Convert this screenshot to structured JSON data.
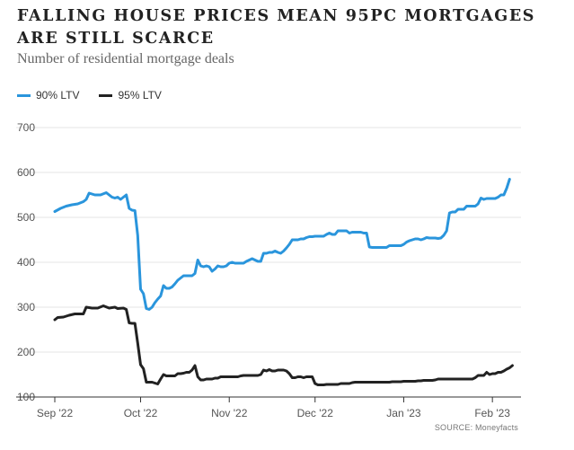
{
  "chart_data": {
    "type": "line",
    "title": "FALLING HOUSE PRICES MEAN 95PC MORTGAGES ARE STILL SCARCE",
    "subtitle": "Number of residential mortgage deals",
    "source": "SOURCE: Moneyfacts",
    "ylim": [
      100,
      700
    ],
    "yticks": [
      100,
      200,
      300,
      400,
      500,
      600,
      700
    ],
    "xlim": [
      0,
      163
    ],
    "xticks": [
      {
        "label": "Sep '22",
        "x": 0
      },
      {
        "label": "Oct '22",
        "x": 30
      },
      {
        "label": "Nov '22",
        "x": 61
      },
      {
        "label": "Dec '22",
        "x": 91
      },
      {
        "label": "Jan '23",
        "x": 122
      },
      {
        "label": "Feb '23",
        "x": 153
      }
    ],
    "grid": true,
    "legend_position": "top-left",
    "series": [
      {
        "name": "90% LTV",
        "color": "#2a95dc",
        "points": [
          [
            0,
            513
          ],
          [
            2,
            520
          ],
          [
            4,
            525
          ],
          [
            6,
            528
          ],
          [
            8,
            530
          ],
          [
            10,
            535
          ],
          [
            11,
            540
          ],
          [
            12,
            554
          ],
          [
            14,
            550
          ],
          [
            16,
            550
          ],
          [
            18,
            555
          ],
          [
            19,
            550
          ],
          [
            20,
            545
          ],
          [
            21,
            543
          ],
          [
            22,
            545
          ],
          [
            23,
            540
          ],
          [
            25,
            550
          ],
          [
            26,
            520
          ],
          [
            27,
            516
          ],
          [
            28,
            515
          ],
          [
            29,
            460
          ],
          [
            30,
            340
          ],
          [
            31,
            330
          ],
          [
            32,
            297
          ],
          [
            33,
            295
          ],
          [
            34,
            300
          ],
          [
            35,
            310
          ],
          [
            36,
            318
          ],
          [
            37,
            325
          ],
          [
            38,
            348
          ],
          [
            39,
            342
          ],
          [
            40,
            342
          ],
          [
            41,
            345
          ],
          [
            42,
            352
          ],
          [
            43,
            360
          ],
          [
            44,
            365
          ],
          [
            45,
            370
          ],
          [
            47,
            370
          ],
          [
            48,
            370
          ],
          [
            49,
            375
          ],
          [
            50,
            405
          ],
          [
            51,
            392
          ],
          [
            52,
            390
          ],
          [
            53,
            392
          ],
          [
            54,
            390
          ],
          [
            55,
            380
          ],
          [
            56,
            385
          ],
          [
            57,
            392
          ],
          [
            58,
            390
          ],
          [
            59,
            390
          ],
          [
            60,
            392
          ],
          [
            61,
            398
          ],
          [
            62,
            400
          ],
          [
            63,
            398
          ],
          [
            64,
            398
          ],
          [
            65,
            398
          ],
          [
            66,
            398
          ],
          [
            67,
            402
          ],
          [
            68,
            405
          ],
          [
            69,
            408
          ],
          [
            70,
            405
          ],
          [
            71,
            402
          ],
          [
            72,
            402
          ],
          [
            73,
            420
          ],
          [
            74,
            420
          ],
          [
            75,
            422
          ],
          [
            76,
            422
          ],
          [
            77,
            425
          ],
          [
            78,
            422
          ],
          [
            79,
            420
          ],
          [
            80,
            425
          ],
          [
            81,
            432
          ],
          [
            82,
            440
          ],
          [
            83,
            450
          ],
          [
            84,
            450
          ],
          [
            85,
            450
          ],
          [
            86,
            452
          ],
          [
            87,
            452
          ],
          [
            88,
            455
          ],
          [
            89,
            457
          ],
          [
            90,
            457
          ],
          [
            91,
            458
          ],
          [
            92,
            458
          ],
          [
            93,
            458
          ],
          [
            94,
            458
          ],
          [
            95,
            462
          ],
          [
            96,
            465
          ],
          [
            97,
            462
          ],
          [
            98,
            462
          ],
          [
            99,
            470
          ],
          [
            100,
            470
          ],
          [
            101,
            470
          ],
          [
            102,
            470
          ],
          [
            103,
            465
          ],
          [
            104,
            467
          ],
          [
            105,
            467
          ],
          [
            106,
            467
          ],
          [
            107,
            467
          ],
          [
            108,
            465
          ],
          [
            109,
            465
          ],
          [
            110,
            434
          ],
          [
            111,
            433
          ],
          [
            112,
            433
          ],
          [
            113,
            433
          ],
          [
            114,
            433
          ],
          [
            115,
            433
          ],
          [
            116,
            433
          ],
          [
            117,
            437
          ],
          [
            118,
            437
          ],
          [
            119,
            437
          ],
          [
            120,
            437
          ],
          [
            121,
            437
          ],
          [
            122,
            440
          ],
          [
            123,
            445
          ],
          [
            124,
            448
          ],
          [
            125,
            450
          ],
          [
            126,
            452
          ],
          [
            127,
            452
          ],
          [
            128,
            450
          ],
          [
            129,
            452
          ],
          [
            130,
            455
          ],
          [
            131,
            454
          ],
          [
            132,
            454
          ],
          [
            133,
            454
          ],
          [
            134,
            453
          ],
          [
            135,
            454
          ],
          [
            136,
            460
          ],
          [
            137,
            470
          ],
          [
            138,
            510
          ],
          [
            139,
            512
          ],
          [
            140,
            512
          ],
          [
            141,
            518
          ],
          [
            142,
            518
          ],
          [
            143,
            518
          ],
          [
            144,
            525
          ],
          [
            145,
            525
          ],
          [
            146,
            525
          ],
          [
            147,
            525
          ],
          [
            148,
            530
          ],
          [
            149,
            543
          ],
          [
            150,
            540
          ],
          [
            151,
            542
          ],
          [
            152,
            542
          ],
          [
            153,
            542
          ],
          [
            154,
            542
          ],
          [
            155,
            545
          ],
          [
            156,
            550
          ],
          [
            157,
            550
          ],
          [
            158,
            565
          ],
          [
            159,
            585
          ]
        ]
      },
      {
        "name": "95% LTV",
        "color": "#222222",
        "points": [
          [
            0,
            272
          ],
          [
            1,
            277
          ],
          [
            3,
            278
          ],
          [
            5,
            282
          ],
          [
            7,
            285
          ],
          [
            9,
            285
          ],
          [
            10,
            285
          ],
          [
            11,
            300
          ],
          [
            13,
            298
          ],
          [
            15,
            298
          ],
          [
            17,
            303
          ],
          [
            19,
            298
          ],
          [
            21,
            300
          ],
          [
            22,
            297
          ],
          [
            24,
            298
          ],
          [
            25,
            295
          ],
          [
            26,
            265
          ],
          [
            27,
            264
          ],
          [
            28,
            264
          ],
          [
            29,
            220
          ],
          [
            30,
            172
          ],
          [
            31,
            163
          ],
          [
            32,
            133
          ],
          [
            33,
            133
          ],
          [
            34,
            133
          ],
          [
            35,
            131
          ],
          [
            36,
            129
          ],
          [
            37,
            140
          ],
          [
            38,
            150
          ],
          [
            39,
            147
          ],
          [
            40,
            147
          ],
          [
            41,
            147
          ],
          [
            42,
            147
          ],
          [
            43,
            152
          ],
          [
            44,
            152
          ],
          [
            45,
            153
          ],
          [
            46,
            155
          ],
          [
            47,
            155
          ],
          [
            48,
            160
          ],
          [
            49,
            170
          ],
          [
            50,
            145
          ],
          [
            51,
            138
          ],
          [
            52,
            138
          ],
          [
            53,
            140
          ],
          [
            54,
            140
          ],
          [
            55,
            140
          ],
          [
            56,
            142
          ],
          [
            57,
            142
          ],
          [
            58,
            145
          ],
          [
            59,
            145
          ],
          [
            60,
            145
          ],
          [
            61,
            145
          ],
          [
            62,
            145
          ],
          [
            63,
            145
          ],
          [
            64,
            145
          ],
          [
            65,
            147
          ],
          [
            66,
            148
          ],
          [
            67,
            148
          ],
          [
            68,
            148
          ],
          [
            69,
            148
          ],
          [
            70,
            148
          ],
          [
            71,
            148
          ],
          [
            72,
            150
          ],
          [
            73,
            160
          ],
          [
            74,
            158
          ],
          [
            75,
            161
          ],
          [
            76,
            158
          ],
          [
            77,
            158
          ],
          [
            78,
            160
          ],
          [
            79,
            160
          ],
          [
            80,
            160
          ],
          [
            81,
            158
          ],
          [
            82,
            152
          ],
          [
            83,
            143
          ],
          [
            84,
            143
          ],
          [
            85,
            145
          ],
          [
            86,
            145
          ],
          [
            87,
            143
          ],
          [
            88,
            145
          ],
          [
            89,
            145
          ],
          [
            90,
            145
          ],
          [
            91,
            130
          ],
          [
            92,
            127
          ],
          [
            93,
            127
          ],
          [
            94,
            127
          ],
          [
            95,
            128
          ],
          [
            96,
            128
          ],
          [
            97,
            128
          ],
          [
            98,
            128
          ],
          [
            99,
            128
          ],
          [
            100,
            130
          ],
          [
            101,
            130
          ],
          [
            102,
            130
          ],
          [
            103,
            130
          ],
          [
            104,
            132
          ],
          [
            105,
            133
          ],
          [
            106,
            133
          ],
          [
            107,
            133
          ],
          [
            108,
            133
          ],
          [
            109,
            133
          ],
          [
            110,
            133
          ],
          [
            111,
            133
          ],
          [
            112,
            133
          ],
          [
            113,
            133
          ],
          [
            114,
            133
          ],
          [
            115,
            133
          ],
          [
            116,
            133
          ],
          [
            117,
            133
          ],
          [
            118,
            134
          ],
          [
            119,
            134
          ],
          [
            120,
            134
          ],
          [
            121,
            134
          ],
          [
            122,
            135
          ],
          [
            123,
            135
          ],
          [
            124,
            135
          ],
          [
            125,
            135
          ],
          [
            126,
            135
          ],
          [
            127,
            136
          ],
          [
            128,
            136
          ],
          [
            129,
            137
          ],
          [
            130,
            137
          ],
          [
            131,
            137
          ],
          [
            132,
            137
          ],
          [
            133,
            138
          ],
          [
            134,
            140
          ],
          [
            135,
            140
          ],
          [
            136,
            140
          ],
          [
            137,
            140
          ],
          [
            138,
            140
          ],
          [
            139,
            140
          ],
          [
            140,
            140
          ],
          [
            141,
            140
          ],
          [
            142,
            140
          ],
          [
            143,
            140
          ],
          [
            144,
            140
          ],
          [
            145,
            140
          ],
          [
            146,
            140
          ],
          [
            147,
            143
          ],
          [
            148,
            148
          ],
          [
            149,
            148
          ],
          [
            150,
            148
          ],
          [
            151,
            155
          ],
          [
            152,
            150
          ],
          [
            153,
            152
          ],
          [
            154,
            152
          ],
          [
            155,
            155
          ],
          [
            156,
            155
          ],
          [
            157,
            158
          ],
          [
            158,
            162
          ],
          [
            159,
            165
          ],
          [
            160,
            170
          ]
        ]
      }
    ]
  }
}
